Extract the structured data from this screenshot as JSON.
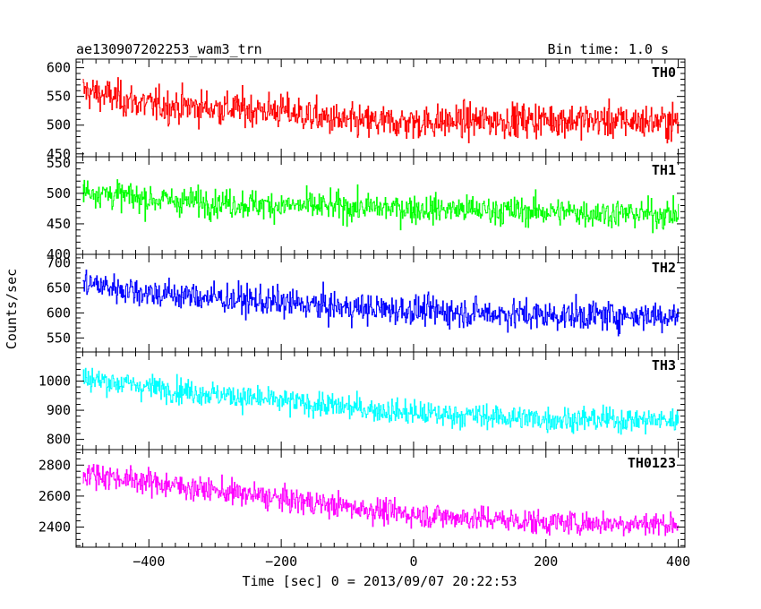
{
  "header": {
    "title": "ae130907202253_wam3_trn",
    "bin_time": "Bin time: 1.0 s"
  },
  "chart_data": {
    "type": "line",
    "ylabel": "Counts/sec",
    "xlabel": "Time [sec] 0 = 2013/09/07 20:22:53",
    "xlim": [
      -510,
      410
    ],
    "x_ticks": [
      -400,
      -200,
      0,
      200,
      400
    ],
    "x_tick_labels": [
      "−400",
      "−200",
      "0",
      "200",
      "400"
    ],
    "grid": false,
    "panels": [
      {
        "name": "TH0",
        "color": "#ff0000",
        "ylim": [
          445,
          615
        ],
        "yticks": [
          450,
          500,
          550,
          600
        ],
        "trend": [
          [
            -500,
            560
          ],
          [
            -400,
            535
          ],
          [
            -200,
            525
          ],
          [
            -100,
            505
          ],
          [
            0,
            505
          ],
          [
            200,
            510
          ],
          [
            400,
            505
          ]
        ],
        "noise": 28
      },
      {
        "name": "TH1",
        "color": "#00ff00",
        "ylim": [
          400,
          560
        ],
        "yticks": [
          400,
          450,
          500,
          550
        ],
        "trend": [
          [
            -500,
            505
          ],
          [
            -400,
            490
          ],
          [
            -200,
            480
          ],
          [
            0,
            475
          ],
          [
            200,
            470
          ],
          [
            400,
            465
          ]
        ],
        "noise": 22
      },
      {
        "name": "TH2",
        "color": "#0000ff",
        "ylim": [
          522,
          717
        ],
        "yticks": [
          550,
          600,
          650,
          700
        ],
        "trend": [
          [
            -500,
            660
          ],
          [
            -400,
            640
          ],
          [
            -200,
            620
          ],
          [
            -100,
            610
          ],
          [
            0,
            605
          ],
          [
            200,
            595
          ],
          [
            400,
            595
          ]
        ],
        "noise": 28
      },
      {
        "name": "TH3",
        "color": "#00ffff",
        "ylim": [
          765,
          1100
        ],
        "yticks": [
          800,
          900,
          1000
        ],
        "trend": [
          [
            -500,
            1010
          ],
          [
            -400,
            980
          ],
          [
            -200,
            930
          ],
          [
            0,
            890
          ],
          [
            200,
            870
          ],
          [
            400,
            865
          ]
        ],
        "noise": 40
      },
      {
        "name": "TH0123",
        "color": "#ff00ff",
        "ylim": [
          2270,
          2900
        ],
        "yticks": [
          2400,
          2600,
          2800
        ],
        "trend": [
          [
            -500,
            2750
          ],
          [
            -400,
            2690
          ],
          [
            -200,
            2580
          ],
          [
            0,
            2480
          ],
          [
            200,
            2430
          ],
          [
            400,
            2420
          ]
        ],
        "noise": 75
      }
    ]
  }
}
